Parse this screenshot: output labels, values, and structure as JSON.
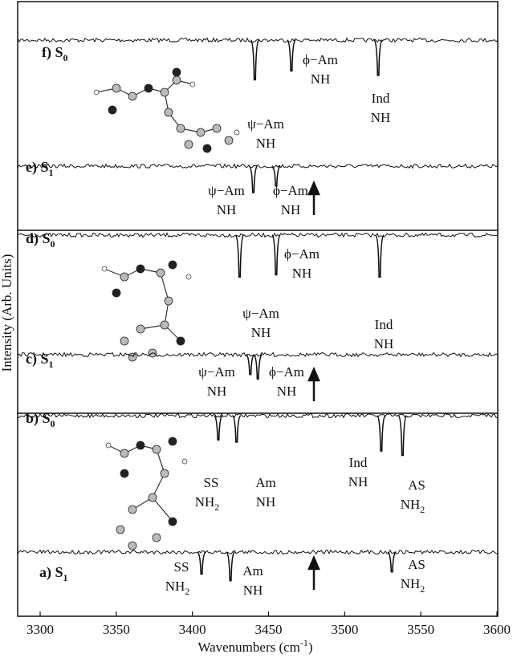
{
  "chart_data": {
    "type": "spectra",
    "xlabel": "Wavenumbers (cm",
    "xlabel_sup": "-1",
    "xlabel_end": ")",
    "ylabel": "Intensity (Arb. Units)",
    "xlim": [
      3300,
      3600
    ],
    "xticks": [
      3300,
      3350,
      3400,
      3450,
      3500,
      3550,
      3600
    ],
    "color": "#111111",
    "spectra": [
      {
        "label": "f) S",
        "sub": "0",
        "peaks": [
          {
            "x": 3441,
            "depth": 0.9
          },
          {
            "x": 3465,
            "depth": 0.7
          },
          {
            "x": 3522,
            "depth": 0.8
          }
        ],
        "annotations": [
          {
            "top": "ϕ−Am",
            "bottom": "NH"
          },
          {
            "top": "Ind",
            "bottom": "NH"
          },
          {
            "top": "ψ−Am",
            "bottom": "NH"
          }
        ]
      },
      {
        "label": "e) S",
        "sub": "1",
        "peaks": [
          {
            "x": 3440,
            "depth": 0.6
          },
          {
            "x": 3455,
            "depth": 0.45
          }
        ],
        "annotations": [
          {
            "top": "ψ−Am",
            "bottom": "NH"
          },
          {
            "top": "ϕ−Am",
            "bottom": "NH"
          }
        ]
      },
      {
        "label": "d) S",
        "sub": "0",
        "peaks": [
          {
            "x": 3431,
            "depth": 0.95
          },
          {
            "x": 3455,
            "depth": 0.9
          },
          {
            "x": 3523,
            "depth": 0.95
          }
        ],
        "annotations": [
          {
            "top": "ϕ−Am",
            "bottom": "NH"
          },
          {
            "top": "ψ−Am",
            "bottom": "NH"
          },
          {
            "top": "Ind",
            "bottom": "NH"
          }
        ]
      },
      {
        "label": "c) S",
        "sub": "1",
        "peaks": [
          {
            "x": 3438,
            "depth": 0.45
          },
          {
            "x": 3443,
            "depth": 0.55
          }
        ],
        "annotations": [
          {
            "top": "ψ−Am",
            "bottom": "NH"
          },
          {
            "top": "ϕ−Am",
            "bottom": "NH"
          }
        ]
      },
      {
        "label": "b) S",
        "sub": "0",
        "peaks": [
          {
            "x": 3417,
            "depth": 0.55
          },
          {
            "x": 3429,
            "depth": 0.6
          },
          {
            "x": 3524,
            "depth": 0.8
          },
          {
            "x": 3538,
            "depth": 0.9
          }
        ],
        "annotations": [
          {
            "top": "SS",
            "bottom": "NH",
            "sub": "2"
          },
          {
            "top": "Am",
            "bottom": "NH"
          },
          {
            "top": "Ind",
            "bottom": "NH"
          },
          {
            "top": "AS",
            "bottom": "NH",
            "sub": "2"
          }
        ]
      },
      {
        "label": "a) S",
        "sub": "1",
        "peaks": [
          {
            "x": 3406,
            "depth": 0.5
          },
          {
            "x": 3425,
            "depth": 0.65
          },
          {
            "x": 3531,
            "depth": 0.45
          }
        ],
        "annotations": [
          {
            "top": "SS",
            "bottom": "NH",
            "sub": "2"
          },
          {
            "top": "Am",
            "bottom": "NH"
          },
          {
            "top": "AS",
            "bottom": "NH",
            "sub": "2"
          }
        ]
      }
    ]
  }
}
